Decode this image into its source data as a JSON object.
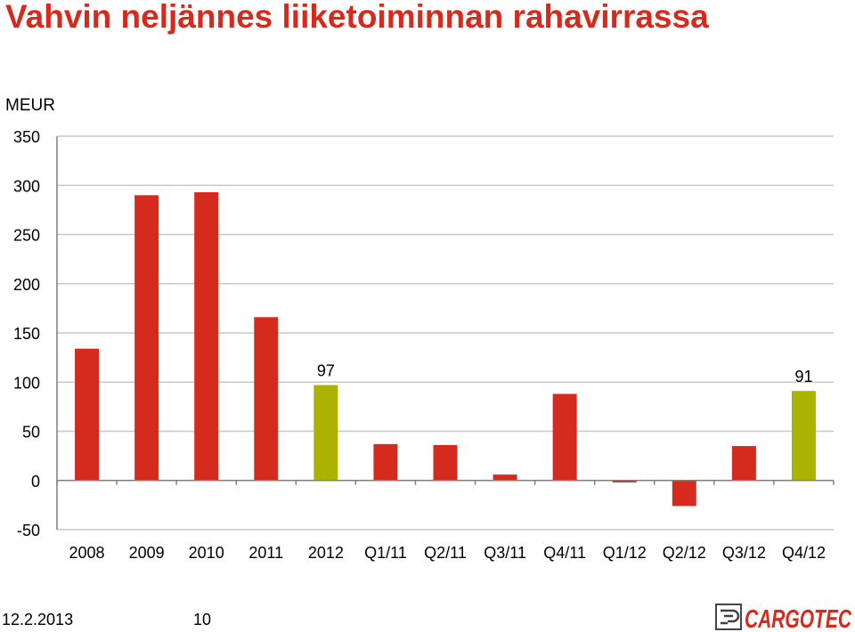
{
  "page": {
    "title": "Vahvin neljännes liiketoiminnan rahavirrassa",
    "unit_label": "MEUR",
    "footer_date": "12.2.2013",
    "footer_page": "10",
    "logo_text": "CARGOTEC"
  },
  "colors": {
    "title": "#d52b1e",
    "bar_default": "#d52b1e",
    "bar_highlight": "#a9b300",
    "grid": "#c8c8c8",
    "axis": "#7f7f7f"
  },
  "chart_data": {
    "type": "bar",
    "title": "",
    "xlabel": "",
    "ylabel": "MEUR",
    "ylim": [
      -50,
      350
    ],
    "yticks": [
      -50,
      0,
      50,
      100,
      150,
      200,
      250,
      300,
      350
    ],
    "grid": true,
    "categories": [
      "2008",
      "2009",
      "2010",
      "2011",
      "2012",
      "Q1/11",
      "Q2/11",
      "Q3/11",
      "Q4/11",
      "Q1/12",
      "Q2/12",
      "Q3/12",
      "Q4/12"
    ],
    "values": [
      134,
      290,
      293,
      166,
      97,
      37,
      36,
      6,
      88,
      -2,
      -26,
      35,
      91
    ],
    "highlight": [
      false,
      false,
      false,
      false,
      true,
      false,
      false,
      false,
      false,
      false,
      false,
      false,
      true
    ],
    "data_labels": [
      "",
      "",
      "",
      "",
      "97",
      "",
      "",
      "",
      "",
      "",
      "",
      "",
      "91"
    ]
  }
}
